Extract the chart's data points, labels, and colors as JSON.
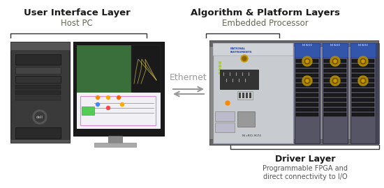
{
  "bg_color": "#ffffff",
  "left_header_bold": "User Interface Layer",
  "left_header_sub": "Host PC",
  "right_header_bold": "Algorithm & Platform Layers",
  "right_header_sub": "Embedded Processor",
  "driver_bold": "Driver Layer",
  "driver_sub1": "Programmable FPGA and",
  "driver_sub2": "direct connectivity to I/O",
  "ethernet_label": "Ethernet",
  "header_color": "#1a1a1a",
  "sub_color": "#555555",
  "ethernet_color": "#999999",
  "bracket_color": "#333333"
}
